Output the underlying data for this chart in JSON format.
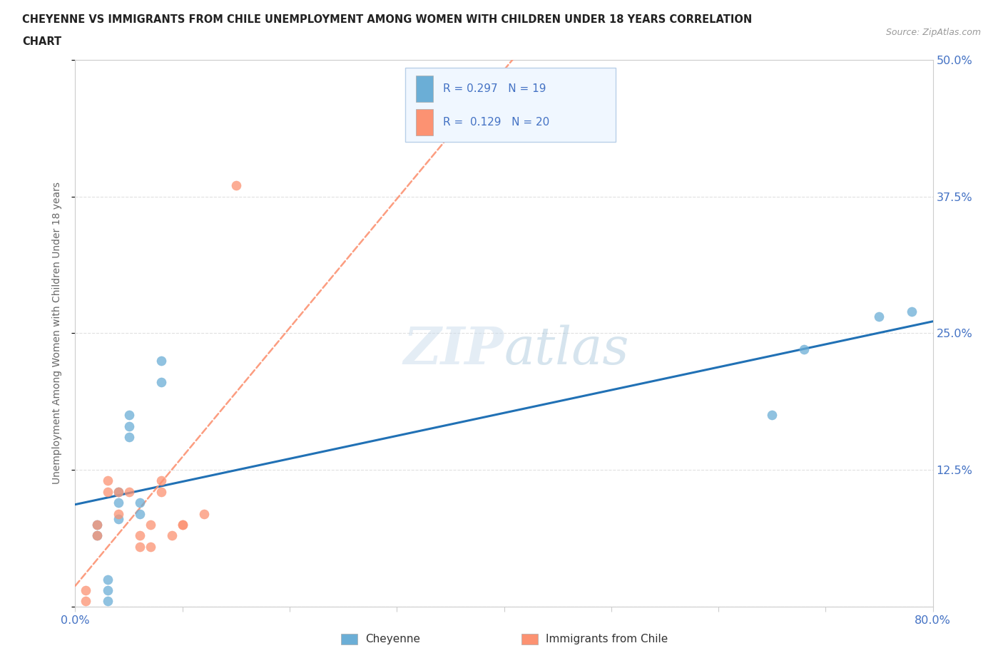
{
  "title_line1": "CHEYENNE VS IMMIGRANTS FROM CHILE UNEMPLOYMENT AMONG WOMEN WITH CHILDREN UNDER 18 YEARS CORRELATION",
  "title_line2": "CHART",
  "source_text": "Source: ZipAtlas.com",
  "ylabel": "Unemployment Among Women with Children Under 18 years",
  "xlim": [
    0.0,
    0.8
  ],
  "ylim": [
    0.0,
    0.5
  ],
  "yticks": [
    0.0,
    0.125,
    0.25,
    0.375,
    0.5
  ],
  "ytick_labels": [
    "",
    "12.5%",
    "25.0%",
    "37.5%",
    "50.0%"
  ],
  "xticks": [
    0.0,
    0.1,
    0.2,
    0.3,
    0.4,
    0.5,
    0.6,
    0.7,
    0.8
  ],
  "xtick_labels": [
    "0.0%",
    "",
    "",
    "",
    "",
    "",
    "",
    "",
    "80.0%"
  ],
  "cheyenne_color": "#6baed6",
  "chile_color": "#fc9272",
  "cheyenne_line_color": "#2171b5",
  "chile_line_color": "#fb6a4a",
  "cheyenne_R": "0.297",
  "cheyenne_N": "19",
  "chile_R": "0.129",
  "chile_N": "20",
  "cheyenne_x": [
    0.02,
    0.02,
    0.03,
    0.03,
    0.03,
    0.04,
    0.04,
    0.04,
    0.05,
    0.05,
    0.05,
    0.06,
    0.06,
    0.08,
    0.08,
    0.65,
    0.68,
    0.75,
    0.78
  ],
  "cheyenne_y": [
    0.065,
    0.075,
    0.005,
    0.015,
    0.025,
    0.08,
    0.095,
    0.105,
    0.155,
    0.165,
    0.175,
    0.085,
    0.095,
    0.205,
    0.225,
    0.175,
    0.235,
    0.265,
    0.27
  ],
  "chile_x": [
    0.01,
    0.01,
    0.02,
    0.02,
    0.03,
    0.03,
    0.04,
    0.04,
    0.05,
    0.06,
    0.06,
    0.07,
    0.07,
    0.08,
    0.08,
    0.09,
    0.1,
    0.1,
    0.12,
    0.15
  ],
  "chile_y": [
    0.005,
    0.015,
    0.065,
    0.075,
    0.105,
    0.115,
    0.085,
    0.105,
    0.105,
    0.055,
    0.065,
    0.055,
    0.075,
    0.105,
    0.115,
    0.065,
    0.075,
    0.075,
    0.085,
    0.385
  ],
  "watermark_zip": "ZIP",
  "watermark_atlas": "atlas",
  "legend_facecolor": "#f0f7ff",
  "legend_edgecolor": "#b8cfe8",
  "background_color": "#ffffff",
  "grid_color": "#dddddd",
  "label_color": "#4472c4",
  "spine_color": "#cccccc",
  "ylabel_color": "#666666",
  "title_color": "#222222"
}
